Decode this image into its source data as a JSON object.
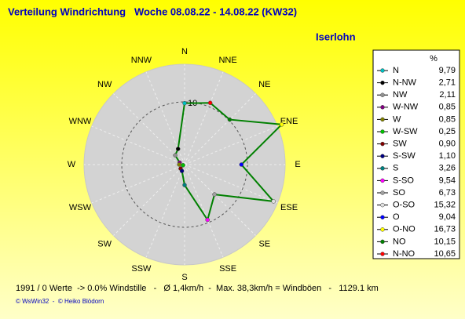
{
  "chart_data": {
    "type": "radar",
    "title": "Verteilung Windrichtung   Woche 08.08.22 - 14.08.22 (KW32)",
    "location": "Iserlohn",
    "axis_labels": [
      "N",
      "NNE",
      "NE",
      "ENE",
      "E",
      "ESE",
      "SE",
      "SSE",
      "S",
      "SSW",
      "SW",
      "WSW",
      "W",
      "WNW",
      "NW",
      "NNW"
    ],
    "legend_header": "%",
    "categories": [
      "N",
      "N-NW",
      "NW",
      "W-NW",
      "W",
      "W-SW",
      "SW",
      "S-SW",
      "S",
      "S-SO",
      "SO",
      "O-SO",
      "O",
      "O-NO",
      "NO",
      "N-NO"
    ],
    "values": [
      9.79,
      2.71,
      2.11,
      0.85,
      0.85,
      0.25,
      0.9,
      1.1,
      3.26,
      9.54,
      6.73,
      15.32,
      9.04,
      16.73,
      10.15,
      10.65
    ],
    "value_labels": [
      "9,79",
      "2,71",
      "2,11",
      "0,85",
      "0,85",
      "0,25",
      "0,90",
      "1,10",
      "3,26",
      "9,54",
      "6,73",
      "15,32",
      "9,04",
      "16,73",
      "10,15",
      "10,65"
    ],
    "marker_colors": [
      "#00c0c0",
      "#000000",
      "#909090",
      "#800080",
      "#808000",
      "#00c000",
      "#800000",
      "#000080",
      "#008080",
      "#ff00ff",
      "#a0a0a0",
      "#e0e0e0",
      "#0000ff",
      "#ffff00",
      "#008000",
      "#ff0000"
    ],
    "color": "#008000",
    "rlim": [
      0,
      16
    ],
    "rticks": [
      10
    ],
    "footer": "1991 / 0 Werte  -> 0.0% Windstille   -   Ø 1,4km/h  -  Max. 38,3km/h = Windböen   -   1129.1 km",
    "credit": "© WsWin32  -  © Heiko Blödorn"
  }
}
